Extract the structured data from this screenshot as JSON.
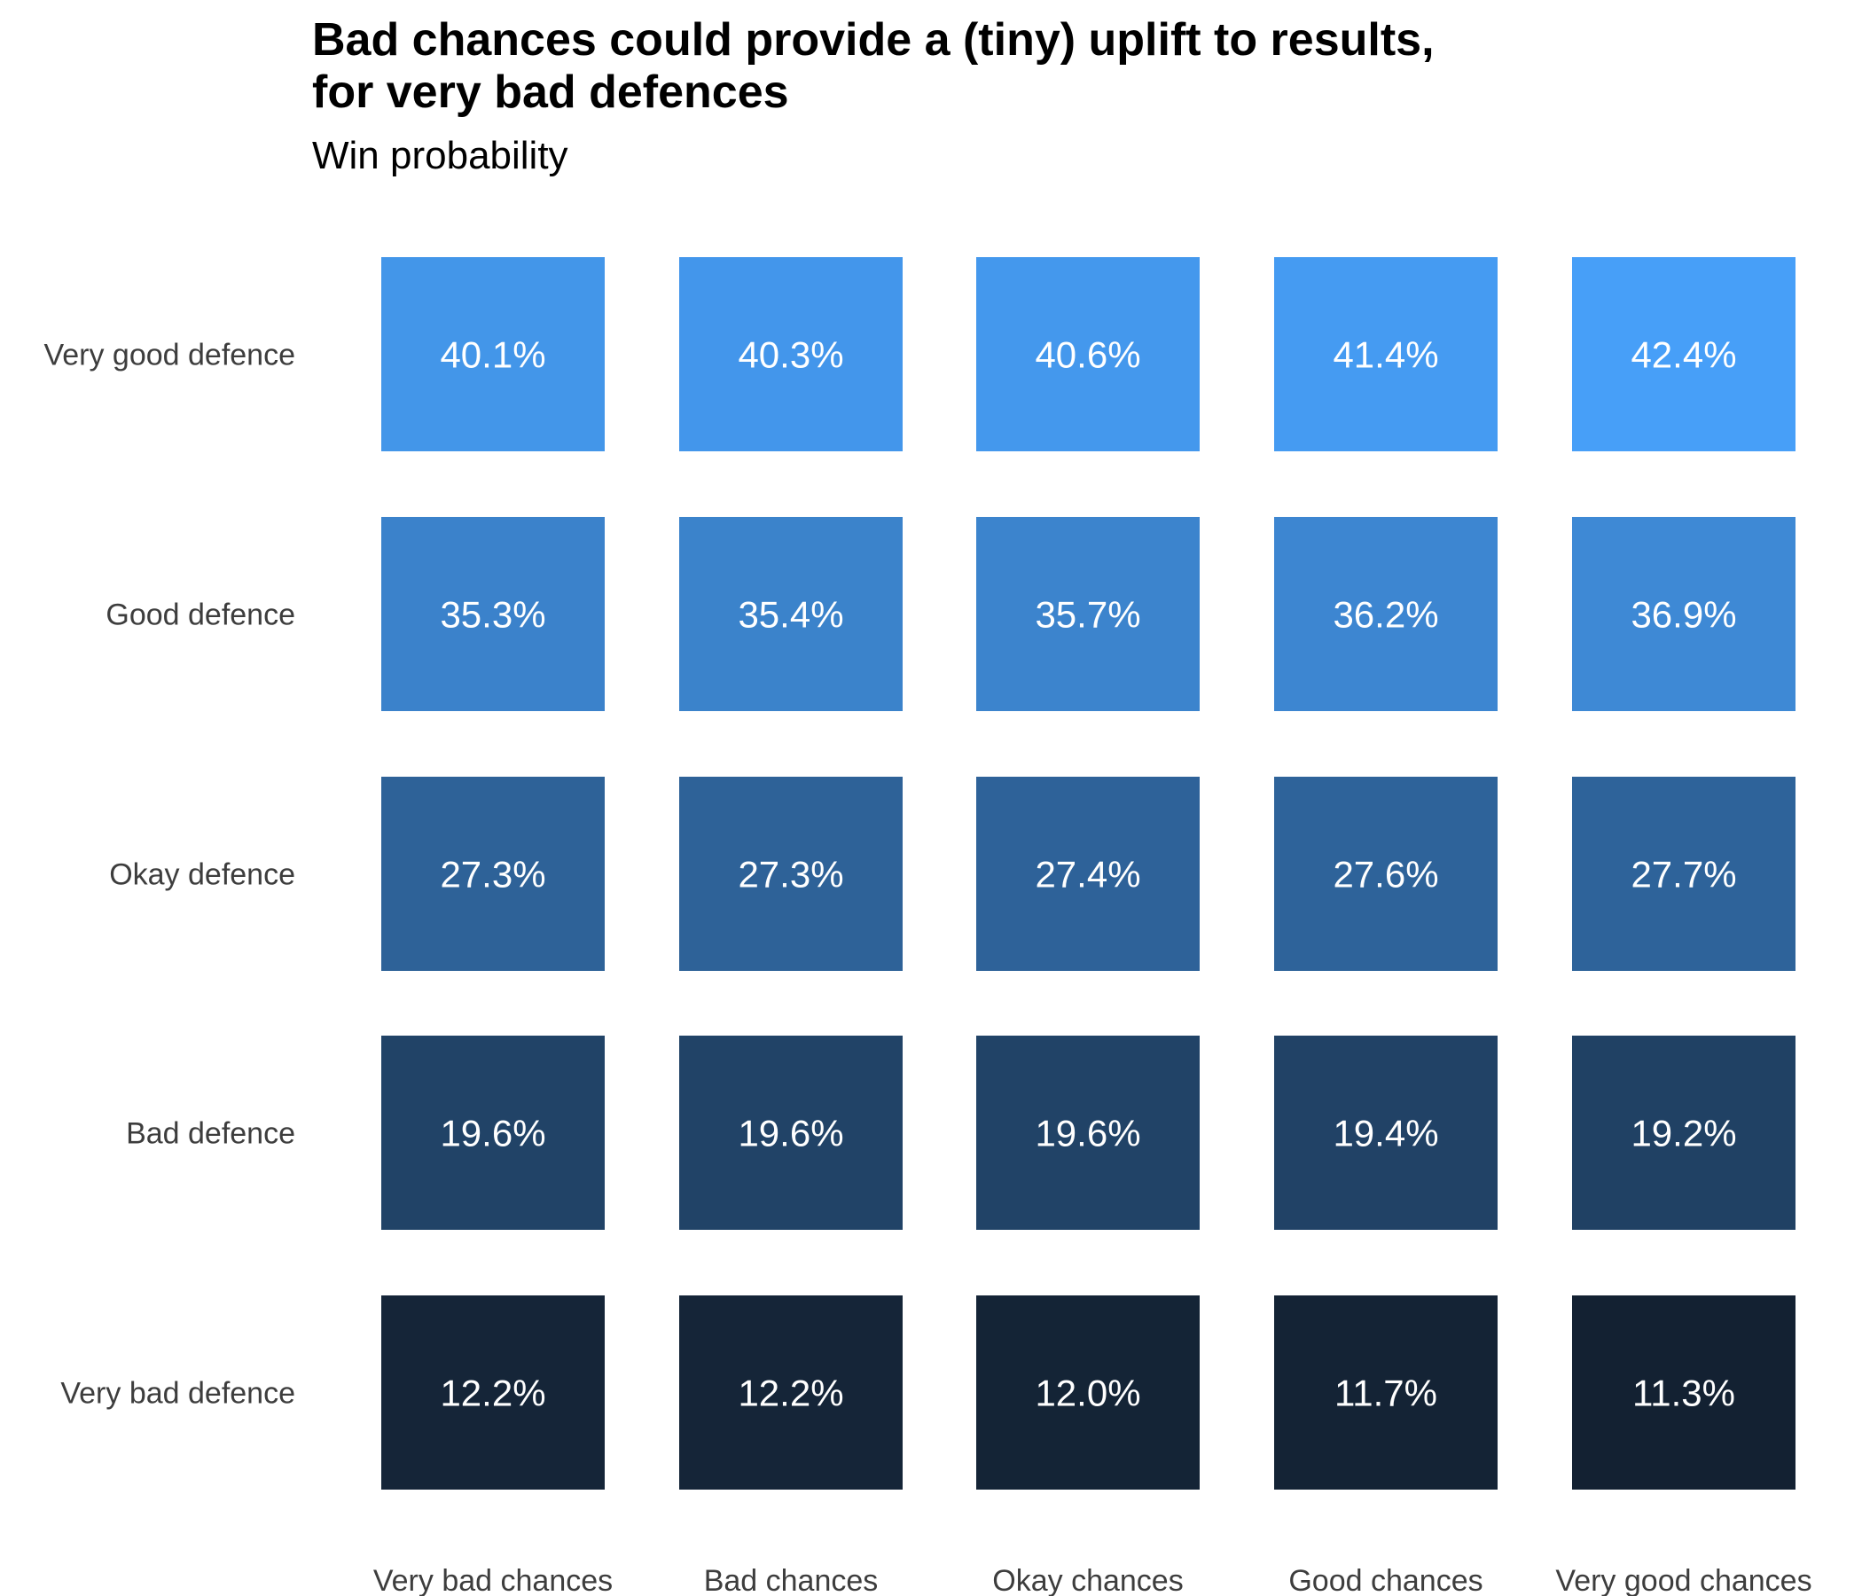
{
  "chart_data": {
    "type": "heatmap",
    "title_lines": [
      "Bad chances could provide a (tiny) uplift to results,",
      "for very bad defences"
    ],
    "subtitle": "Win probability",
    "columns": [
      "Very bad chances",
      "Bad chances",
      "Okay chances",
      "Good chances",
      "Very good chances"
    ],
    "rows": [
      "Very good defence",
      "Good defence",
      "Okay defence",
      "Bad defence",
      "Very bad defence"
    ],
    "values": [
      [
        40.1,
        40.3,
        40.6,
        41.4,
        42.4
      ],
      [
        35.3,
        35.4,
        35.7,
        36.2,
        36.9
      ],
      [
        27.3,
        27.3,
        27.4,
        27.6,
        27.7
      ],
      [
        19.6,
        19.6,
        19.6,
        19.4,
        19.2
      ],
      [
        12.2,
        12.2,
        12.0,
        11.7,
        11.3
      ]
    ],
    "labels": [
      [
        "40.1%",
        "40.3%",
        "40.6%",
        "41.4%",
        "42.4%"
      ],
      [
        "35.3%",
        "35.4%",
        "35.7%",
        "36.2%",
        "36.9%"
      ],
      [
        "27.3%",
        "27.3%",
        "27.4%",
        "27.6%",
        "27.7%"
      ],
      [
        "19.6%",
        "19.6%",
        "19.6%",
        "19.4%",
        "19.2%"
      ],
      [
        "12.2%",
        "12.2%",
        "12.0%",
        "11.7%",
        "11.3%"
      ]
    ],
    "color_scale": {
      "low": "#132132",
      "high": "#479ff8"
    },
    "legend": "none",
    "grid": false
  }
}
